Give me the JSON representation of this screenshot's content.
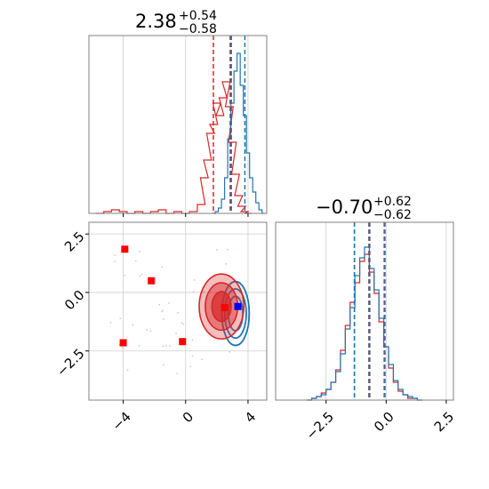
{
  "chart_data": {
    "type": "corner",
    "grid": true,
    "colors": {
      "red": "#d62728",
      "blue": "#1f77b4",
      "marker_red": "#ff0000",
      "marker_blue": "#0000ff",
      "grid": "#cfcfcf"
    },
    "param_1": {
      "title": {
        "median": "2.38",
        "plus": "+0.54",
        "minus": "−0.58"
      },
      "xlim": [
        -6.2,
        5.2
      ],
      "quantiles_red": [
        1.78,
        2.86
      ],
      "quantiles_blue": [
        2.9,
        3.8
      ],
      "truth": 2.9,
      "hist_red": {
        "x": [
          -5.5,
          -5.0,
          -4.5,
          -4.0,
          -3.5,
          -3.0,
          -2.5,
          -2.0,
          -1.5,
          -1.0,
          -0.5,
          0.0,
          0.5,
          1.0,
          1.2,
          1.4,
          1.6,
          1.8,
          2.0,
          2.2,
          2.4,
          2.6,
          2.8,
          3.0,
          3.2,
          3.4,
          3.6,
          3.8,
          4.0
        ],
        "density": [
          0.0,
          0.01,
          0.02,
          0.01,
          0.0,
          0.01,
          0.0,
          0.01,
          0.02,
          0.0,
          0.01,
          0.0,
          0.01,
          0.05,
          0.2,
          0.3,
          0.45,
          0.5,
          0.62,
          0.55,
          0.65,
          0.74,
          0.6,
          0.4,
          0.22,
          0.1,
          0.04,
          0.01,
          0.0
        ]
      },
      "hist_blue": {
        "x": [
          1.8,
          2.0,
          2.2,
          2.4,
          2.6,
          2.8,
          3.0,
          3.2,
          3.4,
          3.6,
          3.8,
          4.0,
          4.2,
          4.4,
          4.6,
          4.8,
          5.0
        ],
        "density": [
          0.0,
          0.01,
          0.03,
          0.08,
          0.2,
          0.42,
          0.62,
          0.8,
          0.9,
          0.72,
          0.55,
          0.34,
          0.2,
          0.12,
          0.06,
          0.02,
          0.0
        ]
      }
    },
    "param_2": {
      "title": {
        "median": "−0.70",
        "plus": "+0.62",
        "minus": "−0.62"
      },
      "xlim": [
        -4.6,
        2.8
      ],
      "xticks": [
        "−2.5",
        "0.0",
        "2.5"
      ],
      "xtick_values": [
        -2.5,
        0.0,
        2.5
      ],
      "quantiles_red": [
        -1.32,
        -0.08
      ],
      "quantiles_blue": [
        -1.32,
        -0.05
      ],
      "truth": -0.7,
      "hist_red": {
        "x": [
          -3.2,
          -3.0,
          -2.8,
          -2.6,
          -2.4,
          -2.2,
          -2.0,
          -1.8,
          -1.6,
          -1.4,
          -1.2,
          -1.0,
          -0.8,
          -0.6,
          -0.4,
          -0.2,
          0.0,
          0.2,
          0.4,
          0.6,
          0.8,
          1.0,
          1.2,
          1.4
        ],
        "density": [
          0.0,
          0.01,
          0.02,
          0.04,
          0.06,
          0.1,
          0.17,
          0.28,
          0.42,
          0.55,
          0.66,
          0.78,
          0.82,
          0.72,
          0.6,
          0.44,
          0.3,
          0.18,
          0.1,
          0.05,
          0.03,
          0.01,
          0.01,
          0.0
        ]
      },
      "hist_blue": {
        "x": [
          -3.2,
          -3.0,
          -2.8,
          -2.6,
          -2.4,
          -2.2,
          -2.0,
          -1.8,
          -1.6,
          -1.4,
          -1.2,
          -1.0,
          -0.8,
          -0.6,
          -0.4,
          -0.2,
          0.0,
          0.2,
          0.4,
          0.6,
          0.8,
          1.0,
          1.2,
          1.4
        ],
        "density": [
          0.0,
          0.01,
          0.02,
          0.03,
          0.06,
          0.1,
          0.16,
          0.26,
          0.4,
          0.52,
          0.7,
          0.8,
          0.86,
          0.74,
          0.62,
          0.46,
          0.3,
          0.2,
          0.11,
          0.06,
          0.03,
          0.02,
          0.01,
          0.0
        ]
      }
    },
    "joint": {
      "xlim": [
        -6.2,
        5.2
      ],
      "ylim": [
        -4.6,
        3.0
      ],
      "xticks": [
        "−4",
        "0",
        "4"
      ],
      "xtick_values": [
        -4,
        0,
        4
      ],
      "yticks": [
        "2.5",
        "0.0",
        "−2.5"
      ],
      "ytick_values": [
        2.5,
        0.0,
        -2.5
      ],
      "red_center": [
        2.3,
        -0.6
      ],
      "blue_center": [
        3.2,
        -0.9
      ],
      "markers_red": [
        [
          -3.9,
          1.85
        ],
        [
          -2.2,
          0.5
        ],
        [
          -4.0,
          -2.15
        ],
        [
          -0.2,
          -2.1
        ],
        [
          2.5,
          -0.65
        ]
      ],
      "markers_blue": [
        [
          3.35,
          -0.6
        ]
      ]
    }
  }
}
